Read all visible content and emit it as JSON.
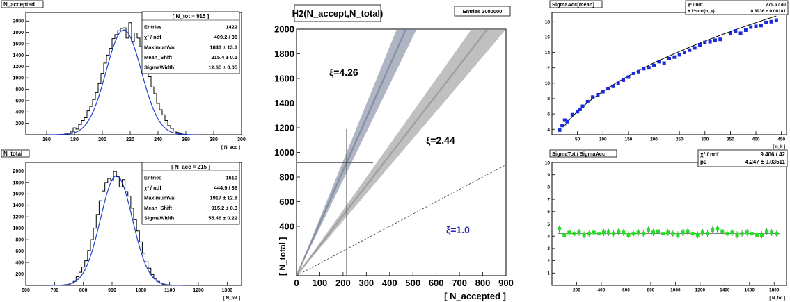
{
  "chart_data": [
    {
      "id": "naccepted",
      "type": "histogram",
      "title": "N_accepted",
      "xlabel": "[ N_acc ]",
      "ylabel": "",
      "xlim": [
        145,
        300
      ],
      "ylim": [
        0,
        2150
      ],
      "xticks": [
        160,
        180,
        200,
        220,
        240,
        260,
        280,
        300
      ],
      "yticks": [
        200,
        400,
        600,
        800,
        1000,
        1200,
        1400,
        1600,
        1800,
        2000
      ],
      "stats": {
        "title": "[ N_tot = 915 ]",
        "rows": [
          [
            "Entries",
            "1422"
          ],
          [
            "χ² / ndf",
            "409.2 / 35"
          ],
          [
            "MaximumVal",
            "1843 ± 13.3"
          ],
          [
            "Mean_Shift",
            "215.4 ± 0.1"
          ],
          [
            "SigmaWidth",
            "12.65 ± 0.05"
          ]
        ]
      },
      "fit": {
        "amplitude": 1843,
        "mean": 215.4,
        "sigma": 12.65
      },
      "bin_width": 2,
      "bins_x": [
        170,
        172,
        174,
        176,
        178,
        180,
        182,
        184,
        186,
        188,
        190,
        192,
        194,
        196,
        198,
        200,
        202,
        204,
        206,
        208,
        210,
        212,
        214,
        216,
        218,
        220,
        222,
        224,
        226,
        228,
        230,
        232,
        234,
        236,
        238,
        240,
        242,
        244,
        246,
        248,
        250,
        252,
        254,
        256,
        258,
        260
      ],
      "bins_y": [
        5,
        8,
        15,
        30,
        50,
        120,
        100,
        180,
        250,
        300,
        420,
        500,
        620,
        740,
        900,
        1080,
        1260,
        1400,
        1520,
        1690,
        1760,
        1830,
        1870,
        1880,
        1700,
        1970,
        1640,
        1790,
        1700,
        1550,
        1400,
        1230,
        1020,
        840,
        720,
        550,
        440,
        350,
        250,
        160,
        110,
        65,
        40,
        20,
        10,
        5
      ]
    },
    {
      "id": "ntotal",
      "type": "histogram",
      "title": "N_total",
      "xlabel": "[ N_tot ]",
      "ylabel": "",
      "xlim": [
        600,
        1350
      ],
      "ylim": [
        0,
        2150
      ],
      "xticks": [
        600,
        700,
        800,
        900,
        1000,
        1100,
        1200,
        1300
      ],
      "yticks": [
        200,
        400,
        600,
        800,
        1000,
        1200,
        1400,
        1600,
        1800,
        2000
      ],
      "stats": {
        "title": "[ N_acc = 215 ]",
        "rows": [
          [
            "Entries",
            "1610"
          ],
          [
            "χ² / ndf",
            "444.9 / 38"
          ],
          [
            "MaximumVal",
            "1917 ± 12.8"
          ],
          [
            "Mean_Shift",
            "915.2 ± 0.3"
          ],
          [
            "SigmaWidth",
            "55.46 ± 0.22"
          ]
        ]
      },
      "fit": {
        "amplitude": 1917,
        "mean": 915.2,
        "sigma": 55.46
      },
      "bin_width": 10,
      "bins_x": [
        740,
        750,
        760,
        770,
        780,
        790,
        800,
        810,
        820,
        830,
        840,
        850,
        860,
        870,
        880,
        890,
        900,
        910,
        920,
        930,
        940,
        950,
        960,
        970,
        980,
        990,
        1000,
        1010,
        1020,
        1030,
        1040,
        1050,
        1060,
        1070,
        1080,
        1090,
        1100
      ],
      "bins_y": [
        10,
        20,
        40,
        70,
        150,
        230,
        320,
        430,
        610,
        800,
        1000,
        1240,
        1480,
        1650,
        1800,
        1870,
        1830,
        1990,
        1900,
        1720,
        1850,
        1640,
        1560,
        1350,
        1150,
        950,
        760,
        560,
        410,
        300,
        190,
        120,
        70,
        40,
        20,
        10,
        5
      ]
    },
    {
      "id": "h2",
      "type": "scatter_density",
      "title": "H2(N_accept,N_total)",
      "entries_label": "Entries 2000000",
      "xlabel": "[ N_accepted ]",
      "ylabel": "[ N_total ]",
      "xlim": [
        0,
        900
      ],
      "ylim": [
        0,
        2000
      ],
      "xticks": [
        0,
        100,
        200,
        300,
        400,
        500,
        600,
        700,
        800,
        900
      ],
      "yticks": [
        400,
        600,
        800,
        1000,
        1200,
        1400,
        1600,
        1800,
        2000
      ],
      "bands": [
        {
          "label": "ξ=4.26",
          "slope": 4.26,
          "color": "#6e7890"
        },
        {
          "label": "ξ=2.44",
          "slope": 2.44,
          "color": "#8c8c8c"
        }
      ],
      "dashed_line": {
        "label": "ξ=1.0",
        "slope": 1.0,
        "label_color": "#2a2aa8"
      },
      "crosshair": {
        "x": 215,
        "y": 915
      }
    },
    {
      "id": "sigmaacc",
      "type": "scatter",
      "title": "SigmaAcc[mean]",
      "xlabel": "[ n_k ]",
      "ylabel": "",
      "xlim": [
        0,
        460
      ],
      "ylim": [
        3.3,
        19.2
      ],
      "xticks": [
        50,
        100,
        150,
        200,
        250,
        300,
        350,
        400,
        450
      ],
      "yticks": [
        4,
        6,
        8,
        10,
        12,
        14,
        16,
        18
      ],
      "stats": {
        "rows": [
          [
            "χ² / ndf",
            "275.6 / 40"
          ],
          [
            "K1*sqrt(n_k)",
            "0.8936 ± 0.00181"
          ]
        ]
      },
      "fit": {
        "k1": 0.8936,
        "x_from": 25,
        "x_to": 440
      },
      "points": [
        [
          15,
          3.9
        ],
        [
          20,
          4.5
        ],
        [
          25,
          5.2
        ],
        [
          30,
          5.0
        ],
        [
          40,
          5.9
        ],
        [
          50,
          6.3
        ],
        [
          55,
          6.6
        ],
        [
          60,
          7.0
        ],
        [
          70,
          7.6
        ],
        [
          80,
          8.2
        ],
        [
          90,
          8.5
        ],
        [
          100,
          8.9
        ],
        [
          110,
          9.3
        ],
        [
          120,
          9.6
        ],
        [
          130,
          10.0
        ],
        [
          140,
          10.4
        ],
        [
          150,
          10.8
        ],
        [
          160,
          11.3
        ],
        [
          170,
          11.5
        ],
        [
          180,
          11.9
        ],
        [
          190,
          12.0
        ],
        [
          200,
          12.3
        ],
        [
          210,
          12.8
        ],
        [
          220,
          12.6
        ],
        [
          230,
          13.2
        ],
        [
          240,
          13.4
        ],
        [
          250,
          13.7
        ],
        [
          260,
          14.0
        ],
        [
          270,
          14.3
        ],
        [
          280,
          14.6
        ],
        [
          290,
          15.0
        ],
        [
          300,
          15.3
        ],
        [
          310,
          15.4
        ],
        [
          320,
          15.6
        ],
        [
          330,
          15.7
        ],
        [
          350,
          16.5
        ],
        [
          360,
          16.8
        ],
        [
          370,
          16.5
        ],
        [
          380,
          16.9
        ],
        [
          390,
          17.3
        ],
        [
          400,
          17.4
        ],
        [
          410,
          17.5
        ],
        [
          420,
          17.9
        ],
        [
          430,
          18.0
        ],
        [
          440,
          18.2
        ]
      ]
    },
    {
      "id": "sigmatot",
      "type": "scatter",
      "title": "SigmaTot / SigmaAcc",
      "xlabel": "[ N_tot ]",
      "ylabel": "",
      "xlim": [
        0,
        1900
      ],
      "ylim": [
        0,
        10
      ],
      "xticks": [
        200,
        400,
        600,
        800,
        1000,
        1200,
        1400,
        1600,
        1800
      ],
      "yticks": [
        1,
        2,
        3,
        4,
        5,
        6,
        7,
        8,
        9,
        10
      ],
      "stats": {
        "rows": [
          [
            "χ² / ndf",
            "9.406 / 42"
          ],
          [
            "p0",
            "4.247 ± 0.03511"
          ]
        ]
      },
      "fit": {
        "p0": 4.247,
        "x_from": 50,
        "x_to": 1850
      },
      "points": [
        [
          60,
          4.6
        ],
        [
          100,
          4.1
        ],
        [
          140,
          4.3
        ],
        [
          180,
          4.2
        ],
        [
          220,
          4.3
        ],
        [
          260,
          4.1
        ],
        [
          300,
          4.2
        ],
        [
          340,
          4.3
        ],
        [
          380,
          4.2
        ],
        [
          420,
          4.3
        ],
        [
          460,
          4.3
        ],
        [
          500,
          4.2
        ],
        [
          540,
          4.4
        ],
        [
          580,
          4.3
        ],
        [
          620,
          4.1
        ],
        [
          660,
          4.2
        ],
        [
          700,
          4.3
        ],
        [
          740,
          4.2
        ],
        [
          780,
          4.5
        ],
        [
          820,
          4.3
        ],
        [
          860,
          4.4
        ],
        [
          900,
          4.2
        ],
        [
          940,
          4.3
        ],
        [
          980,
          4.2
        ],
        [
          1020,
          4.1
        ],
        [
          1060,
          4.3
        ],
        [
          1100,
          4.4
        ],
        [
          1140,
          4.2
        ],
        [
          1180,
          4.1
        ],
        [
          1220,
          4.3
        ],
        [
          1260,
          4.2
        ],
        [
          1300,
          4.5
        ],
        [
          1340,
          4.6
        ],
        [
          1380,
          4.4
        ],
        [
          1420,
          4.2
        ],
        [
          1460,
          4.3
        ],
        [
          1500,
          4.1
        ],
        [
          1540,
          4.2
        ],
        [
          1580,
          4.3
        ],
        [
          1620,
          4.2
        ],
        [
          1660,
          4.1
        ],
        [
          1700,
          4.1
        ],
        [
          1740,
          4.4
        ],
        [
          1780,
          4.3
        ],
        [
          1820,
          4.2
        ]
      ]
    }
  ]
}
